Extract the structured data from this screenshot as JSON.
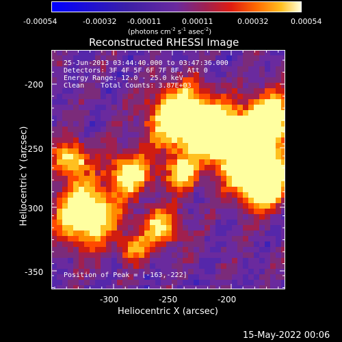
{
  "colorbar": {
    "tick_labels": [
      "-0.00054",
      "-0.00032",
      "-0.00011",
      "0.00011",
      "0.00032",
      "0.00054"
    ],
    "units_label_parts": [
      "(photons cm",
      "-2",
      " s",
      "-1",
      " asec",
      "-2",
      ")"
    ]
  },
  "title": "Reconstructed RHESSI Image",
  "axes": {
    "xlabel": "Heliocentric X (arcsec)",
    "ylabel": "Heliocentric Y (arcsec)",
    "x_ticks": [
      "-300",
      "-250",
      "-200"
    ],
    "y_ticks": [
      "-200",
      "-250",
      "-300",
      "-350"
    ]
  },
  "overlay": {
    "line1": "25-Jun-2013 03:44:40.000 to 03:47:36.000",
    "line2": "Detectors: 3F 4F 5F 6F 7F 8F, Att 0",
    "line3": "Energy Range: 12.0 - 25.0 keV",
    "line4": "Clean    Total Counts: 3.87E+03",
    "peak": "Position of Peak = [-163,-222]"
  },
  "footer_timestamp": "15-May-2022 00:06",
  "colors": {
    "background": "#000000",
    "colormap": [
      "#0000ff",
      "#4b1fb5",
      "#6a2aa0",
      "#a0204f",
      "#d01d10",
      "#ff4a00",
      "#ffa000",
      "#ffff80"
    ]
  }
}
